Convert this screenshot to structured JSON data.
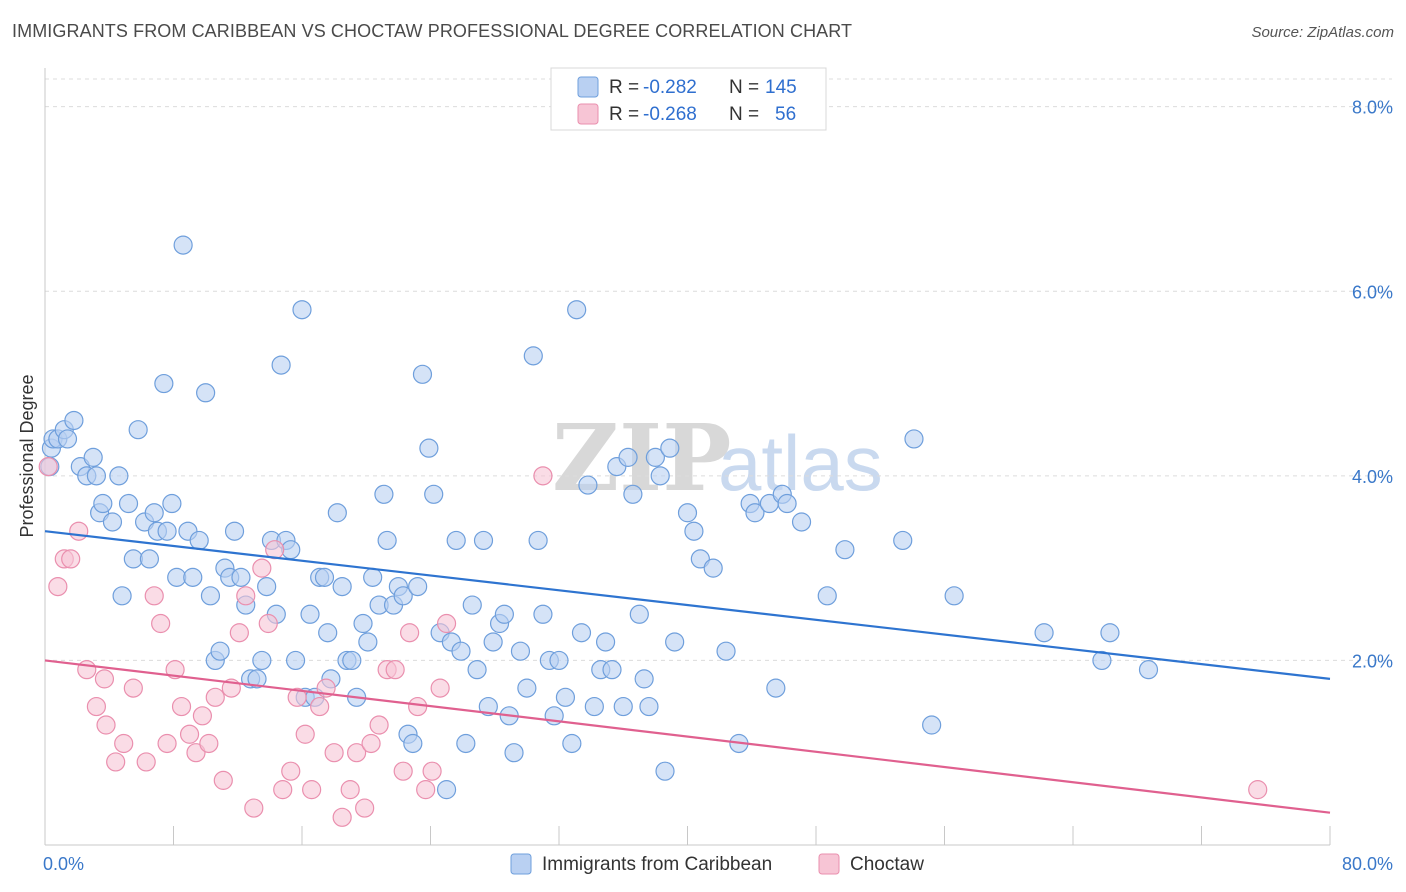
{
  "header": {
    "title": "IMMIGRANTS FROM CARIBBEAN VS CHOCTAW PROFESSIONAL DEGREE CORRELATION CHART",
    "source": "Source: ZipAtlas.com"
  },
  "watermark": {
    "zip": "ZIP",
    "atlas": "atlas"
  },
  "colors": {
    "blue_fill": "#b9d0f2",
    "blue_stroke": "#6f9fdc",
    "blue_line": "#2e74d0",
    "pink_fill": "#f7c5d5",
    "pink_stroke": "#ea8fae",
    "pink_line": "#e0608f",
    "tick_text": "#3a78c9",
    "grid": "#dcdcdc"
  },
  "legend": {
    "rows": [
      {
        "r_label": "R = ",
        "r_value": "-0.282",
        "n_label": "N = ",
        "n_value": "145"
      },
      {
        "r_label": "R = ",
        "r_value": "-0.268",
        "n_label": "N = ",
        "n_value": "56"
      }
    ]
  },
  "chart_data": {
    "type": "scatter",
    "xlabel": "",
    "ylabel": "Professional Degree",
    "xlim": [
      0,
      80
    ],
    "ylim": [
      0,
      8.3
    ],
    "x_tick_labels": [
      {
        "value": 0,
        "label": "0.0%"
      },
      {
        "value": 80,
        "label": "80.0%"
      }
    ],
    "y_tick_labels": [
      {
        "value": 2,
        "label": "2.0%"
      },
      {
        "value": 4,
        "label": "4.0%"
      },
      {
        "value": 6,
        "label": "6.0%"
      },
      {
        "value": 8,
        "label": "8.0%"
      }
    ],
    "x_minor_ticks": [
      8,
      16,
      24,
      32,
      40,
      48,
      56,
      64,
      72
    ],
    "grid": true,
    "legend_position": "top-center",
    "series": [
      {
        "name": "Immigrants from Caribbean",
        "color": "blue",
        "trend": {
          "x": [
            0,
            80
          ],
          "y": [
            3.4,
            1.8
          ]
        },
        "points": [
          [
            0.4,
            4.3
          ],
          [
            0.5,
            4.4
          ],
          [
            0.8,
            4.4
          ],
          [
            1.2,
            4.5
          ],
          [
            1.4,
            4.4
          ],
          [
            1.8,
            4.6
          ],
          [
            2.2,
            4.1
          ],
          [
            2.6,
            4.0
          ],
          [
            3.0,
            4.2
          ],
          [
            3.2,
            4.0
          ],
          [
            3.4,
            3.6
          ],
          [
            3.6,
            3.7
          ],
          [
            4.2,
            3.5
          ],
          [
            4.6,
            4.0
          ],
          [
            4.8,
            2.7
          ],
          [
            5.2,
            3.7
          ],
          [
            5.5,
            3.1
          ],
          [
            5.8,
            4.5
          ],
          [
            6.2,
            3.5
          ],
          [
            6.5,
            3.1
          ],
          [
            6.8,
            3.6
          ],
          [
            7.0,
            3.4
          ],
          [
            7.4,
            5.0
          ],
          [
            7.6,
            3.4
          ],
          [
            7.9,
            3.7
          ],
          [
            8.2,
            2.9
          ],
          [
            8.6,
            6.5
          ],
          [
            8.9,
            3.4
          ],
          [
            9.2,
            2.9
          ],
          [
            9.6,
            3.3
          ],
          [
            10.0,
            4.9
          ],
          [
            10.3,
            2.7
          ],
          [
            10.6,
            2.0
          ],
          [
            10.9,
            2.1
          ],
          [
            11.2,
            3.0
          ],
          [
            11.5,
            2.9
          ],
          [
            11.8,
            3.4
          ],
          [
            12.2,
            2.9
          ],
          [
            12.5,
            2.6
          ],
          [
            12.8,
            1.8
          ],
          [
            13.2,
            1.8
          ],
          [
            13.5,
            2.0
          ],
          [
            13.8,
            2.8
          ],
          [
            14.1,
            3.3
          ],
          [
            14.4,
            2.5
          ],
          [
            14.7,
            5.2
          ],
          [
            15.0,
            3.3
          ],
          [
            15.3,
            3.2
          ],
          [
            15.6,
            2.0
          ],
          [
            16.0,
            5.8
          ],
          [
            16.2,
            1.6
          ],
          [
            16.5,
            2.5
          ],
          [
            16.8,
            1.6
          ],
          [
            17.1,
            2.9
          ],
          [
            17.4,
            2.9
          ],
          [
            17.6,
            2.3
          ],
          [
            17.8,
            1.8
          ],
          [
            18.2,
            3.6
          ],
          [
            18.5,
            2.8
          ],
          [
            18.8,
            2.0
          ],
          [
            19.1,
            2.0
          ],
          [
            19.4,
            1.6
          ],
          [
            19.8,
            2.4
          ],
          [
            20.1,
            2.2
          ],
          [
            20.4,
            2.9
          ],
          [
            20.8,
            2.6
          ],
          [
            21.1,
            3.8
          ],
          [
            21.3,
            3.3
          ],
          [
            21.7,
            2.6
          ],
          [
            22.0,
            2.8
          ],
          [
            22.3,
            2.7
          ],
          [
            22.6,
            1.2
          ],
          [
            22.9,
            1.1
          ],
          [
            23.2,
            2.8
          ],
          [
            23.5,
            5.1
          ],
          [
            23.9,
            4.3
          ],
          [
            24.2,
            3.8
          ],
          [
            24.6,
            2.3
          ],
          [
            25.0,
            0.6
          ],
          [
            25.3,
            2.2
          ],
          [
            25.6,
            3.3
          ],
          [
            25.9,
            2.1
          ],
          [
            26.2,
            1.1
          ],
          [
            26.6,
            2.6
          ],
          [
            26.9,
            1.9
          ],
          [
            27.3,
            3.3
          ],
          [
            27.6,
            1.5
          ],
          [
            27.9,
            2.2
          ],
          [
            28.3,
            2.4
          ],
          [
            28.6,
            2.5
          ],
          [
            28.9,
            1.4
          ],
          [
            29.2,
            1.0
          ],
          [
            29.6,
            2.1
          ],
          [
            30.0,
            1.7
          ],
          [
            30.4,
            5.3
          ],
          [
            30.7,
            3.3
          ],
          [
            31.0,
            2.5
          ],
          [
            31.4,
            2.0
          ],
          [
            31.7,
            1.4
          ],
          [
            32.0,
            2.0
          ],
          [
            32.4,
            1.6
          ],
          [
            32.8,
            1.1
          ],
          [
            33.1,
            5.8
          ],
          [
            33.4,
            2.3
          ],
          [
            33.8,
            3.9
          ],
          [
            34.2,
            1.5
          ],
          [
            34.6,
            1.9
          ],
          [
            34.9,
            2.2
          ],
          [
            35.3,
            1.9
          ],
          [
            35.6,
            4.1
          ],
          [
            36.0,
            1.5
          ],
          [
            36.3,
            4.2
          ],
          [
            36.6,
            3.8
          ],
          [
            37.0,
            2.5
          ],
          [
            37.3,
            1.8
          ],
          [
            37.6,
            1.5
          ],
          [
            38.0,
            4.2
          ],
          [
            38.3,
            4.0
          ],
          [
            38.6,
            0.8
          ],
          [
            38.9,
            4.3
          ],
          [
            39.2,
            2.2
          ],
          [
            40.0,
            3.6
          ],
          [
            40.4,
            3.4
          ],
          [
            40.8,
            3.1
          ],
          [
            41.6,
            3.0
          ],
          [
            42.4,
            2.1
          ],
          [
            43.2,
            1.1
          ],
          [
            43.9,
            3.7
          ],
          [
            44.2,
            3.6
          ],
          [
            45.1,
            3.7
          ],
          [
            45.5,
            1.7
          ],
          [
            45.9,
            3.8
          ],
          [
            46.2,
            3.7
          ],
          [
            47.1,
            3.5
          ],
          [
            48.7,
            2.7
          ],
          [
            49.8,
            3.2
          ],
          [
            53.4,
            3.3
          ],
          [
            54.1,
            4.4
          ],
          [
            55.2,
            1.3
          ],
          [
            56.6,
            2.7
          ],
          [
            62.2,
            2.3
          ],
          [
            65.8,
            2.0
          ],
          [
            66.3,
            2.3
          ],
          [
            68.7,
            1.9
          ],
          [
            0.3,
            4.1
          ]
        ]
      },
      {
        "name": "Choctaw",
        "color": "pink",
        "trend": {
          "x": [
            0,
            80
          ],
          "y": [
            2.0,
            0.35
          ]
        },
        "points": [
          [
            0.2,
            4.1
          ],
          [
            0.8,
            2.8
          ],
          [
            1.2,
            3.1
          ],
          [
            1.6,
            3.1
          ],
          [
            2.1,
            3.4
          ],
          [
            2.6,
            1.9
          ],
          [
            3.2,
            1.5
          ],
          [
            3.7,
            1.8
          ],
          [
            3.8,
            1.3
          ],
          [
            4.4,
            0.9
          ],
          [
            4.9,
            1.1
          ],
          [
            5.5,
            1.7
          ],
          [
            6.3,
            0.9
          ],
          [
            6.8,
            2.7
          ],
          [
            7.2,
            2.4
          ],
          [
            7.6,
            1.1
          ],
          [
            8.1,
            1.9
          ],
          [
            8.5,
            1.5
          ],
          [
            9.0,
            1.2
          ],
          [
            9.4,
            1.0
          ],
          [
            9.8,
            1.4
          ],
          [
            10.2,
            1.1
          ],
          [
            10.6,
            1.6
          ],
          [
            11.1,
            0.7
          ],
          [
            11.6,
            1.7
          ],
          [
            12.1,
            2.3
          ],
          [
            12.5,
            2.7
          ],
          [
            13.0,
            0.4
          ],
          [
            13.5,
            3.0
          ],
          [
            13.9,
            2.4
          ],
          [
            14.3,
            3.2
          ],
          [
            14.8,
            0.6
          ],
          [
            15.3,
            0.8
          ],
          [
            15.7,
            1.6
          ],
          [
            16.2,
            1.2
          ],
          [
            16.6,
            0.6
          ],
          [
            17.1,
            1.5
          ],
          [
            17.5,
            1.7
          ],
          [
            18.0,
            1.0
          ],
          [
            18.5,
            0.3
          ],
          [
            19.0,
            0.6
          ],
          [
            19.4,
            1.0
          ],
          [
            19.9,
            0.4
          ],
          [
            20.3,
            1.1
          ],
          [
            20.8,
            1.3
          ],
          [
            21.3,
            1.9
          ],
          [
            21.8,
            1.9
          ],
          [
            22.3,
            0.8
          ],
          [
            22.7,
            2.3
          ],
          [
            23.2,
            1.5
          ],
          [
            23.7,
            0.6
          ],
          [
            24.1,
            0.8
          ],
          [
            24.6,
            1.7
          ],
          [
            25.0,
            2.4
          ],
          [
            31.0,
            4.0
          ],
          [
            75.5,
            0.6
          ]
        ]
      }
    ]
  },
  "bottom_legend": {
    "items": [
      {
        "label": "Immigrants from Caribbean"
      },
      {
        "label": "Choctaw"
      }
    ]
  }
}
